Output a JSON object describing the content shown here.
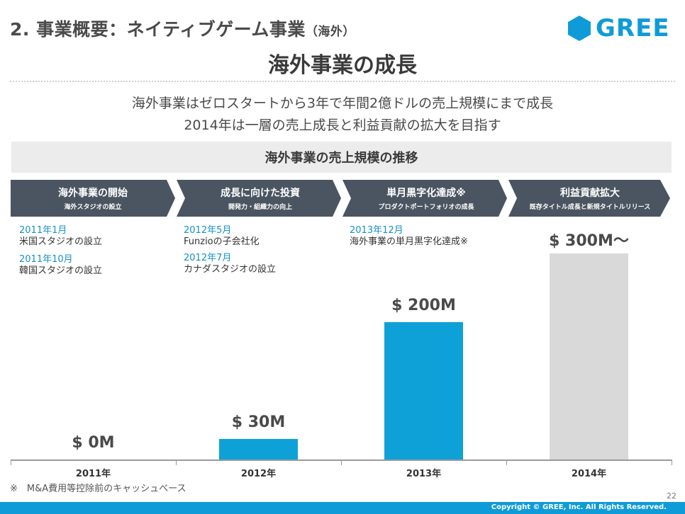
{
  "header": {
    "title": "2. 事業概要：ネイティブゲーム事業",
    "title_suffix": "（海外）",
    "slide_title": "海外事業の成長",
    "logo_text": "GREE"
  },
  "subtitle": {
    "line1": "海外事業はゼロスタートから3年で年間2億ドルの売上規模にまで成長",
    "line2": "2014年は一層の売上成長と利益貢献の拡大を目指す"
  },
  "section_title": "海外事業の売上規模の推移",
  "process_steps": [
    {
      "title": "海外事業の開始",
      "sub": "海外スタジオの設立"
    },
    {
      "title": "成長に向けた投資",
      "sub": "開発力・組織力の向上"
    },
    {
      "title": "単月黒字化達成※",
      "sub": "プロダクトポートフォリオの成長"
    },
    {
      "title": "利益貢献拡大",
      "sub": "既存タイトル成長と新規タイトルリリース"
    }
  ],
  "events": {
    "e1": {
      "date": "2011年1月",
      "text": "米国スタジオの設立"
    },
    "e2": {
      "date": "2011年10月",
      "text": "韓国スタジオの設立"
    },
    "e3": {
      "date": "2012年5月",
      "text": "Funzioの子会社化"
    },
    "e4": {
      "date": "2012年7月",
      "text": "カナダスタジオの設立"
    },
    "e5": {
      "date": "2013年12月",
      "text": "海外事業の単月黒字化達成※"
    }
  },
  "chart_data": {
    "type": "bar",
    "categories": [
      "2011年",
      "2012年",
      "2013年",
      "2014年"
    ],
    "values": [
      0,
      30,
      200,
      300
    ],
    "value_labels": [
      "$ 0M",
      "$ 30M",
      "$ 200M",
      "$ 300M〜"
    ],
    "unit": "$M",
    "colors": [
      "#0ea1d8",
      "#0ea1d8",
      "#0ea1d8",
      "#d9d9d9"
    ],
    "ylim": [
      0,
      300
    ]
  },
  "footnote": "※　M&A費用等控除前のキャッシュベース",
  "page_number": "22",
  "copyright": "Copyright © GREE, Inc. All Rights Reserved.",
  "colors": {
    "brand": "#0f9bd8",
    "process_arrow": "#4a5561",
    "bar_actual": "#0ea1d8",
    "bar_target": "#d9d9d9"
  }
}
